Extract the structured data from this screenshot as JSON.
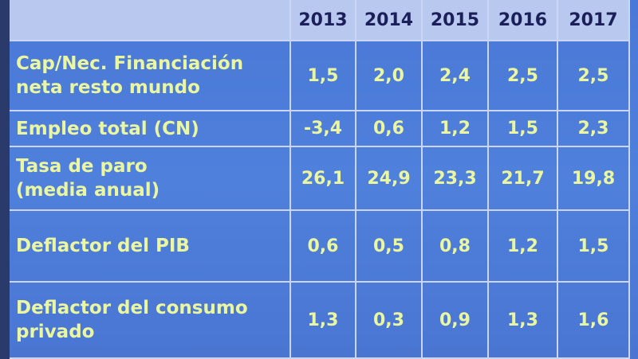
{
  "table": {
    "header": [
      "2013",
      "2014",
      "2015",
      "2016",
      "2017"
    ],
    "rows": [
      {
        "label": [
          "Cap/Nec. Financiación",
          "neta resto mundo"
        ],
        "values": [
          "1,5",
          "2,0",
          "2,4",
          "2,5",
          "2,5"
        ]
      },
      {
        "label": [
          "Empleo total (CN)"
        ],
        "values": [
          "-3,4",
          "0,6",
          "1,2",
          "1,5",
          "2,3"
        ]
      },
      {
        "label": [
          "Tasa de paro",
          "(media anual)"
        ],
        "values": [
          "26,1",
          "24,9",
          "23,3",
          "21,7",
          "19,8"
        ]
      },
      {
        "label": [
          "Deflactor del PIB"
        ],
        "values": [
          "0,6",
          "0,5",
          "0,8",
          "1,2",
          "1,5"
        ]
      },
      {
        "label": [
          "Deflactor del consumo",
          "privado"
        ],
        "values": [
          "1,3",
          "0,3",
          "0,9",
          "1,3",
          "1,6"
        ]
      }
    ]
  }
}
